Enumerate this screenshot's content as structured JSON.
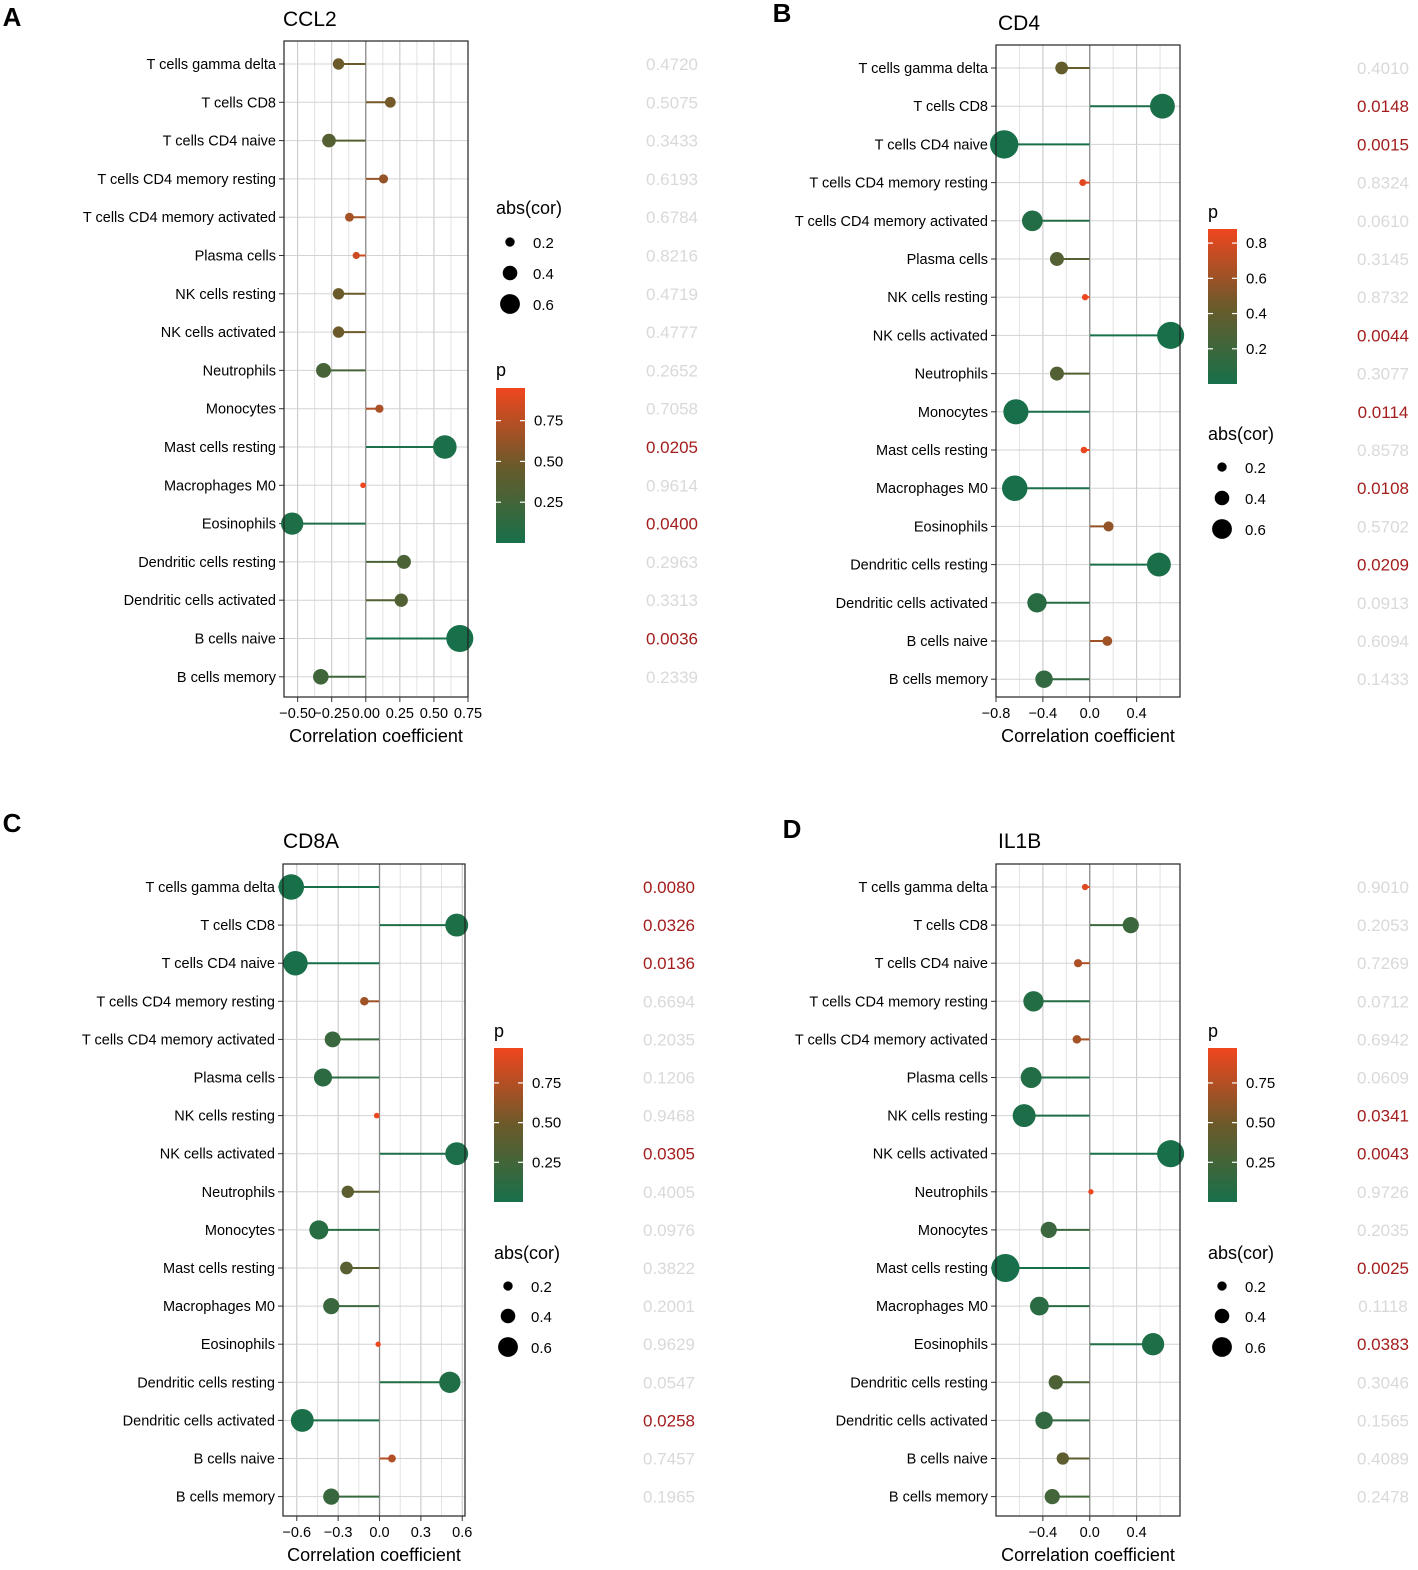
{
  "figure": {
    "panel_letters": [
      "A",
      "B",
      "C",
      "D"
    ],
    "colors": {
      "sig_p": "#a31d1d",
      "nonsig_p": "#d9d9d9",
      "grad_low": "#17704a",
      "grad_mid": "#6b5a2a",
      "grad_high": "#f0461f",
      "grid": "#d3d3d3",
      "zero_line": "#8a8a8a"
    }
  },
  "chart_data": [
    {
      "type": "lollipop",
      "panel": "A",
      "title": "CCL2",
      "xlabel": "Correlation coefficient",
      "xlim": [
        -0.6,
        0.75
      ],
      "xticks": [
        -0.5,
        -0.25,
        0.0,
        0.25,
        0.5,
        0.75
      ],
      "xtick_labels": [
        "−0.50",
        "−0.25",
        "0.00",
        "0.25",
        "0.50",
        "0.75"
      ],
      "categories": [
        "T cells gamma delta",
        "T cells CD8",
        "T cells CD4 naive",
        "T cells CD4 memory resting",
        "T cells CD4 memory activated",
        "Plasma cells",
        "NK cells resting",
        "NK cells activated",
        "Neutrophils",
        "Monocytes",
        "Mast cells resting",
        "Macrophages M0",
        "Eosinophils",
        "Dendritic cells resting",
        "Dendritic cells activated",
        "B cells naive",
        "B cells memory"
      ],
      "cor": [
        -0.2,
        0.18,
        -0.27,
        0.13,
        -0.12,
        -0.07,
        -0.2,
        -0.2,
        -0.31,
        0.1,
        0.58,
        -0.02,
        -0.54,
        0.28,
        0.26,
        0.69,
        -0.33
      ],
      "p": [
        0.472,
        0.5075,
        0.3433,
        0.6193,
        0.6784,
        0.8216,
        0.4719,
        0.4777,
        0.2652,
        0.7058,
        0.0205,
        0.9614,
        0.04,
        0.2963,
        0.3313,
        0.0036,
        0.2339
      ],
      "p_labels": [
        "0.4720",
        "0.5075",
        "0.3433",
        "0.6193",
        "0.6784",
        "0.8216",
        "0.4719",
        "0.4777",
        "0.2652",
        "0.7058",
        "0.0205",
        "0.9614",
        "0.0400",
        "0.2963",
        "0.3313",
        "0.0036",
        "0.2339"
      ],
      "legend": {
        "position": "right",
        "order": "size-first",
        "size_title": "abs(cor)",
        "size_values": [
          0.2,
          0.4,
          0.6
        ],
        "size_labels": [
          "0.2",
          "0.4",
          "0.6"
        ],
        "color_title": "p",
        "color_range": [
          0,
          0.95
        ],
        "color_ticks": [
          0.25,
          0.5,
          0.75
        ],
        "color_tick_labels": [
          "0.25",
          "0.50",
          "0.75"
        ]
      }
    },
    {
      "type": "lollipop",
      "panel": "B",
      "title": "CD4",
      "xlabel": "Correlation coefficient",
      "xlim": [
        -0.8,
        0.77
      ],
      "xticks": [
        -0.8,
        -0.4,
        0.0,
        0.4
      ],
      "xtick_labels": [
        "−0.8",
        "−0.4",
        "0.0",
        "0.4"
      ],
      "categories": [
        "T cells gamma delta",
        "T cells CD8",
        "T cells CD4 naive",
        "T cells CD4 memory resting",
        "T cells CD4 memory activated",
        "Plasma cells",
        "NK cells resting",
        "NK cells activated",
        "Neutrophils",
        "Monocytes",
        "Mast cells resting",
        "Macrophages M0",
        "Eosinophils",
        "Dendritic cells resting",
        "Dendritic cells activated",
        "B cells naive",
        "B cells memory"
      ],
      "cor": [
        -0.24,
        0.62,
        -0.73,
        -0.06,
        -0.49,
        -0.28,
        -0.04,
        0.69,
        -0.28,
        -0.63,
        -0.05,
        -0.64,
        0.16,
        0.59,
        -0.45,
        0.15,
        -0.39
      ],
      "p": [
        0.401,
        0.0148,
        0.0015,
        0.8324,
        0.061,
        0.3145,
        0.8732,
        0.0044,
        0.3077,
        0.0114,
        0.8578,
        0.0108,
        0.5702,
        0.0209,
        0.0913,
        0.6094,
        0.1433
      ],
      "p_labels": [
        "0.4010",
        "0.0148",
        "0.0015",
        "0.8324",
        "0.0610",
        "0.3145",
        "0.8732",
        "0.0044",
        "0.3077",
        "0.0114",
        "0.8578",
        "0.0108",
        "0.5702",
        "0.0209",
        "0.0913",
        "0.6094",
        "0.1433"
      ],
      "legend": {
        "position": "right",
        "order": "color-first",
        "size_title": "abs(cor)",
        "size_values": [
          0.2,
          0.4,
          0.6
        ],
        "size_labels": [
          "0.2",
          "0.4",
          "0.6"
        ],
        "color_title": "p",
        "color_range": [
          0,
          0.88
        ],
        "color_ticks": [
          0.2,
          0.4,
          0.6,
          0.8
        ],
        "color_tick_labels": [
          "0.2",
          "0.4",
          "0.6",
          "0.8"
        ]
      }
    },
    {
      "type": "lollipop",
      "panel": "C",
      "title": "CD8A",
      "xlabel": "Correlation coefficient",
      "xlim": [
        -0.7,
        0.62
      ],
      "xticks": [
        -0.6,
        -0.3,
        0.0,
        0.3,
        0.6
      ],
      "xtick_labels": [
        "−0.6",
        "−0.3",
        "0.0",
        "0.3",
        "0.6"
      ],
      "categories": [
        "T cells gamma delta",
        "T cells CD8",
        "T cells CD4 naive",
        "T cells CD4 memory resting",
        "T cells CD4 memory activated",
        "Plasma cells",
        "NK cells resting",
        "NK cells activated",
        "Neutrophils",
        "Monocytes",
        "Mast cells resting",
        "Macrophages M0",
        "Eosinophils",
        "Dendritic cells resting",
        "Dendritic cells activated",
        "B cells naive",
        "B cells memory"
      ],
      "cor": [
        -0.64,
        0.56,
        -0.61,
        -0.11,
        -0.34,
        -0.41,
        -0.02,
        0.56,
        -0.23,
        -0.44,
        -0.24,
        -0.35,
        -0.01,
        0.51,
        -0.56,
        0.09,
        -0.35
      ],
      "p": [
        0.008,
        0.0326,
        0.0136,
        0.6694,
        0.2035,
        0.1206,
        0.9468,
        0.0305,
        0.4005,
        0.0976,
        0.3822,
        0.2001,
        0.9629,
        0.0547,
        0.0258,
        0.7457,
        0.1965
      ],
      "p_labels": [
        "0.0080",
        "0.0326",
        "0.0136",
        "0.6694",
        "0.2035",
        "0.1206",
        "0.9468",
        "0.0305",
        "0.4005",
        "0.0976",
        "0.3822",
        "0.2001",
        "0.9629",
        "0.0547",
        "0.0258",
        "0.7457",
        "0.1965"
      ],
      "legend": {
        "position": "right",
        "order": "color-first",
        "size_title": "abs(cor)",
        "size_values": [
          0.2,
          0.4,
          0.6
        ],
        "size_labels": [
          "0.2",
          "0.4",
          "0.6"
        ],
        "color_title": "p",
        "color_range": [
          0,
          0.97
        ],
        "color_ticks": [
          0.25,
          0.5,
          0.75
        ],
        "color_tick_labels": [
          "0.25",
          "0.50",
          "0.75"
        ]
      }
    },
    {
      "type": "lollipop",
      "panel": "D",
      "title": "IL1B",
      "xlabel": "Correlation coefficient",
      "xlim": [
        -0.8,
        0.77
      ],
      "xticks": [
        -0.4,
        0.0,
        0.4
      ],
      "xtick_labels": [
        "−0.4",
        "0.0",
        "0.4"
      ],
      "categories": [
        "T cells gamma delta",
        "T cells CD8",
        "T cells CD4 naive",
        "T cells CD4 memory resting",
        "T cells CD4 memory activated",
        "Plasma cells",
        "NK cells resting",
        "NK cells activated",
        "Neutrophils",
        "Monocytes",
        "Mast cells resting",
        "Macrophages M0",
        "Eosinophils",
        "Dendritic cells resting",
        "Dendritic cells activated",
        "B cells naive",
        "B cells memory"
      ],
      "cor": [
        -0.04,
        0.35,
        -0.1,
        -0.48,
        -0.11,
        -0.5,
        -0.56,
        0.69,
        0.01,
        -0.35,
        -0.72,
        -0.43,
        0.54,
        -0.29,
        -0.39,
        -0.23,
        -0.32
      ],
      "p": [
        0.901,
        0.2053,
        0.7269,
        0.0712,
        0.6942,
        0.0609,
        0.0341,
        0.0043,
        0.9726,
        0.2035,
        0.0025,
        0.1118,
        0.0383,
        0.3046,
        0.1565,
        0.4089,
        0.2478
      ],
      "p_labels": [
        "0.9010",
        "0.2053",
        "0.7269",
        "0.0712",
        "0.6942",
        "0.0609",
        "0.0341",
        "0.0043",
        "0.9726",
        "0.2035",
        "0.0025",
        "0.1118",
        "0.0383",
        "0.3046",
        "0.1565",
        "0.4089",
        "0.2478"
      ],
      "legend": {
        "position": "right",
        "order": "color-first",
        "size_title": "abs(cor)",
        "size_values": [
          0.2,
          0.4,
          0.6
        ],
        "size_labels": [
          "0.2",
          "0.4",
          "0.6"
        ],
        "color_title": "p",
        "color_range": [
          0,
          0.97
        ],
        "color_ticks": [
          0.25,
          0.5,
          0.75
        ],
        "color_tick_labels": [
          "0.25",
          "0.50",
          "0.75"
        ]
      }
    }
  ]
}
